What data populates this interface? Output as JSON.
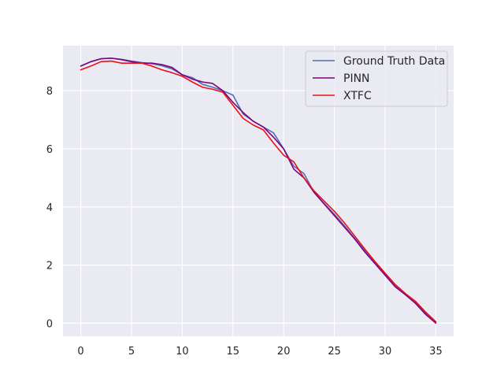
{
  "chart_data": {
    "type": "line",
    "title": "",
    "xlabel": "",
    "ylabel": "",
    "xlim": [
      -1.75,
      36.75
    ],
    "ylim": [
      -0.45,
      9.55
    ],
    "xticks": [
      0,
      5,
      10,
      15,
      20,
      25,
      30,
      35
    ],
    "yticks": [
      0,
      2,
      4,
      6,
      8
    ],
    "grid": true,
    "legend_position": "top-right",
    "series": [
      {
        "name": "Ground Truth Data",
        "color": "#4c72b0",
        "x": [
          0,
          1,
          2,
          3,
          4,
          5,
          6,
          7,
          8,
          9,
          10,
          11,
          12,
          13,
          14,
          15,
          16,
          17,
          18,
          19,
          20,
          21,
          22,
          23,
          24,
          25,
          26,
          27,
          28,
          29,
          30,
          31,
          32,
          33,
          34,
          35
        ],
        "y": [
          8.85,
          9.0,
          9.1,
          9.12,
          9.08,
          9.02,
          8.97,
          8.93,
          8.86,
          8.75,
          8.55,
          8.45,
          8.22,
          8.12,
          8.0,
          7.85,
          7.2,
          6.95,
          6.75,
          6.55,
          6.0,
          5.4,
          5.15,
          4.5,
          4.12,
          3.75,
          3.35,
          2.92,
          2.5,
          2.1,
          1.7,
          1.3,
          0.98,
          0.7,
          0.35,
          0.05
        ]
      },
      {
        "name": "PINN",
        "color": "#800080",
        "x": [
          0,
          1,
          2,
          3,
          4,
          5,
          6,
          7,
          8,
          9,
          10,
          11,
          12,
          13,
          14,
          15,
          16,
          17,
          18,
          19,
          20,
          21,
          22,
          23,
          24,
          25,
          26,
          27,
          28,
          29,
          30,
          31,
          32,
          33,
          34,
          35
        ],
        "y": [
          8.85,
          9.0,
          9.1,
          9.12,
          9.07,
          9.0,
          8.95,
          8.95,
          8.9,
          8.8,
          8.55,
          8.4,
          8.3,
          8.25,
          8.0,
          7.6,
          7.25,
          6.95,
          6.75,
          6.4,
          6.0,
          5.3,
          5.0,
          4.5,
          4.1,
          3.7,
          3.3,
          2.9,
          2.45,
          2.05,
          1.65,
          1.25,
          0.98,
          0.68,
          0.3,
          0.0
        ]
      },
      {
        "name": "XTFC",
        "color": "#e8101a",
        "x": [
          0,
          1,
          2,
          3,
          4,
          5,
          6,
          7,
          8,
          9,
          10,
          11,
          12,
          13,
          14,
          15,
          16,
          17,
          18,
          19,
          20,
          21,
          22,
          23,
          24,
          25,
          26,
          27,
          28,
          29,
          30,
          31,
          32,
          33,
          34,
          35
        ],
        "y": [
          8.72,
          8.85,
          9.0,
          9.02,
          8.95,
          8.95,
          8.95,
          8.85,
          8.72,
          8.62,
          8.5,
          8.3,
          8.12,
          8.05,
          7.95,
          7.5,
          7.05,
          6.82,
          6.65,
          6.2,
          5.78,
          5.55,
          5.0,
          4.55,
          4.2,
          3.85,
          3.45,
          3.0,
          2.55,
          2.12,
          1.72,
          1.33,
          1.02,
          0.75,
          0.38,
          0.05
        ]
      }
    ]
  }
}
